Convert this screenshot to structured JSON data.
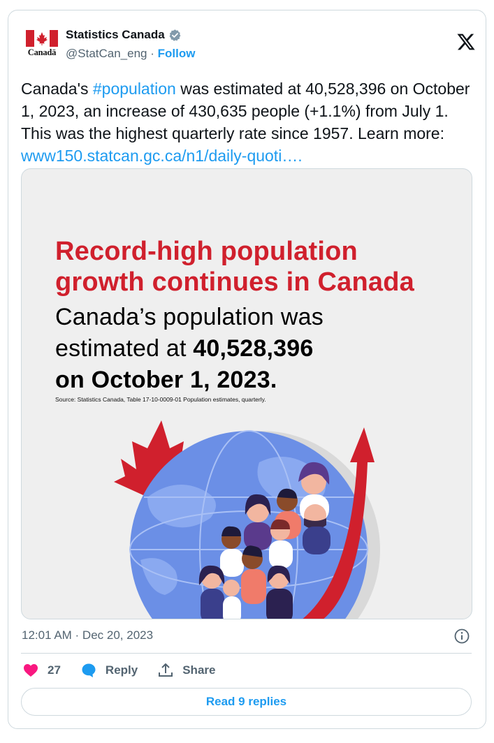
{
  "author": {
    "display_name": "Statistics Canada",
    "handle": "@StatCan_eng",
    "separator": " · ",
    "follow_label": "Follow",
    "logo_wordmark": "Canadä",
    "verified": true
  },
  "tweet": {
    "text_1": "Canada's ",
    "hashtag": "#population",
    "text_2": " was estimated at 40,528,396 on October 1, 2023, an increase of 430,635 people (+1.1%) from July 1. This was the highest quarterly rate since 1957.",
    "text_3": "Learn more: ",
    "link": "www150.statcan.gc.ca/n1/daily-quoti…."
  },
  "media": {
    "headline_line_1": "Record-high population",
    "headline_line_2": "growth continues in Canada",
    "body_1": "Canada’s population was",
    "body_2": "estimated at ",
    "body_number": "40,528,396",
    "body_3": "on October 1, 2023.",
    "source": "Source: Statistics Canada, Table 17-10-0009-01  Population estimates, quarterly."
  },
  "meta": {
    "timestamp": "12:01 AM · Dec 20, 2023"
  },
  "actions": {
    "likes": "27",
    "reply_label": "Reply",
    "share_label": "Share"
  },
  "read_replies_label": "Read 9 replies",
  "colors": {
    "accent": "#1d9bf0",
    "canada_red": "#d0202d",
    "like_pink": "#f91880",
    "text_secondary": "#536471",
    "border": "#cfd9de"
  },
  "icons": [
    "canada-flag-icon",
    "verified-badge-icon",
    "x-logo-icon",
    "info-icon",
    "heart-icon",
    "reply-bubble-icon",
    "share-icon"
  ]
}
